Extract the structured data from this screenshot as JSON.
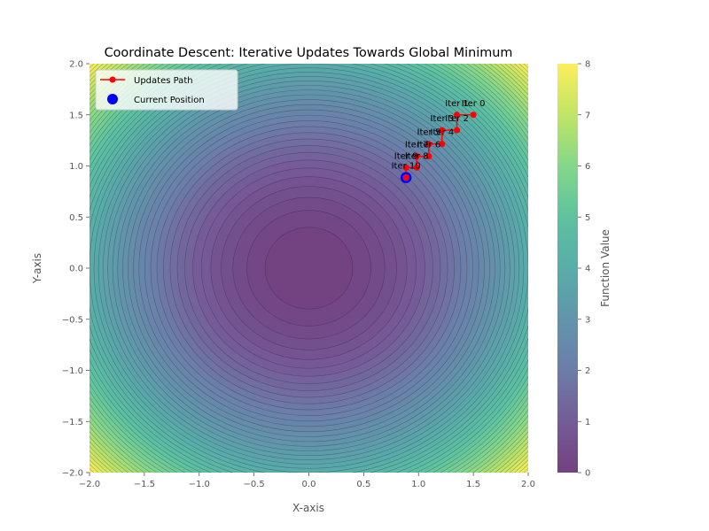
{
  "chart_data": {
    "type": "contour",
    "title": "Coordinate Descent: Iterative Updates Towards Global Minimum",
    "xlabel": "X-axis",
    "ylabel": "Y-axis",
    "xlim": [
      -2.0,
      2.0
    ],
    "ylim": [
      -2.0,
      2.0
    ],
    "xticks": [
      "−2.0",
      "−1.5",
      "−1.0",
      "−0.5",
      "0.0",
      "0.5",
      "1.0",
      "1.5",
      "2.0"
    ],
    "yticks": [
      "−2.0",
      "−1.5",
      "−1.0",
      "−0.5",
      "0.0",
      "0.5",
      "1.0",
      "1.5",
      "2.0"
    ],
    "function": "x^2 + y^2",
    "colormap": "viridis",
    "colorbar": {
      "label": "Function Value",
      "range": [
        0,
        8
      ],
      "ticks": [
        "0",
        "1",
        "2",
        "3",
        "4",
        "5",
        "6",
        "7",
        "8"
      ]
    },
    "series": [
      {
        "name": "Updates Path",
        "color": "#ff0000",
        "marker": "circle",
        "points": [
          {
            "label": "Iter 0",
            "x": 1.5,
            "y": 1.5
          },
          {
            "label": "Iter 1",
            "x": 1.35,
            "y": 1.5
          },
          {
            "label": "Iter 2",
            "x": 1.35,
            "y": 1.35
          },
          {
            "label": "Iter 3",
            "x": 1.215,
            "y": 1.35
          },
          {
            "label": "Iter 4",
            "x": 1.215,
            "y": 1.215
          },
          {
            "label": "Iter 5",
            "x": 1.094,
            "y": 1.215
          },
          {
            "label": "Iter 6",
            "x": 1.094,
            "y": 1.094
          },
          {
            "label": "Iter 7",
            "x": 0.984,
            "y": 1.094
          },
          {
            "label": "Iter 8",
            "x": 0.984,
            "y": 0.984
          },
          {
            "label": "Iter 9",
            "x": 0.886,
            "y": 0.984
          },
          {
            "label": "Iter 10",
            "x": 0.886,
            "y": 0.886
          }
        ]
      },
      {
        "name": "Current Position",
        "color": "#0000ff",
        "marker": "circle",
        "points": [
          {
            "x": 0.886,
            "y": 0.886
          }
        ]
      }
    ],
    "legend_position": "upper-left",
    "grid": false
  }
}
